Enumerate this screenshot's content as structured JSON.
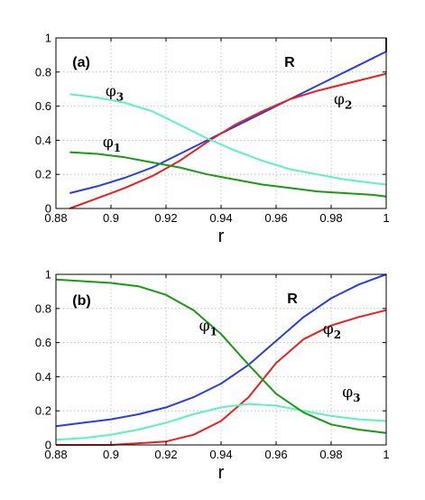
{
  "chart_data": [
    {
      "type": "line",
      "panel_label": "(a)",
      "xlabel": "r",
      "ylabel": "",
      "xlim": [
        0.88,
        1.0
      ],
      "ylim": [
        0,
        1
      ],
      "xticks": [
        "0.88",
        "0.9",
        "0.92",
        "0.94",
        "0.96",
        "0.98",
        "1"
      ],
      "yticks": [
        "0",
        "0.2",
        "0.4",
        "0.6",
        "0.8",
        "1"
      ],
      "grid": true,
      "series": [
        {
          "name": "R",
          "label": "R",
          "color": "#2b3fe0",
          "points": [
            [
              0.885,
              0.09
            ],
            [
              0.895,
              0.13
            ],
            [
              0.905,
              0.18
            ],
            [
              0.915,
              0.24
            ],
            [
              0.925,
              0.32
            ],
            [
              0.935,
              0.4
            ],
            [
              0.945,
              0.48
            ],
            [
              0.955,
              0.56
            ],
            [
              0.965,
              0.64
            ],
            [
              0.975,
              0.72
            ],
            [
              0.985,
              0.8
            ],
            [
              0.995,
              0.88
            ],
            [
              1.0,
              0.92
            ],
            [
              1.0,
              1.0
            ]
          ]
        },
        {
          "name": "φ2",
          "label": "φ",
          "sub": "2",
          "color": "#e82020",
          "points": [
            [
              0.885,
              0.0
            ],
            [
              0.895,
              0.06
            ],
            [
              0.905,
              0.12
            ],
            [
              0.915,
              0.19
            ],
            [
              0.925,
              0.28
            ],
            [
              0.935,
              0.39
            ],
            [
              0.945,
              0.49
            ],
            [
              0.955,
              0.57
            ],
            [
              0.965,
              0.64
            ],
            [
              0.975,
              0.69
            ],
            [
              0.985,
              0.73
            ],
            [
              0.995,
              0.77
            ],
            [
              1.0,
              0.79
            ]
          ]
        },
        {
          "name": "φ3",
          "label": "φ",
          "sub": "3",
          "color": "#5cf2c0",
          "points": [
            [
              0.885,
              0.67
            ],
            [
              0.895,
              0.65
            ],
            [
              0.905,
              0.62
            ],
            [
              0.915,
              0.57
            ],
            [
              0.925,
              0.49
            ],
            [
              0.935,
              0.41
            ],
            [
              0.945,
              0.34
            ],
            [
              0.955,
              0.28
            ],
            [
              0.965,
              0.23
            ],
            [
              0.975,
              0.2
            ],
            [
              0.985,
              0.17
            ],
            [
              0.995,
              0.15
            ],
            [
              1.0,
              0.14
            ]
          ]
        },
        {
          "name": "φ1",
          "label": "φ",
          "sub": "1",
          "color": "#1a9a14",
          "points": [
            [
              0.885,
              0.33
            ],
            [
              0.895,
              0.32
            ],
            [
              0.905,
              0.3
            ],
            [
              0.915,
              0.27
            ],
            [
              0.925,
              0.24
            ],
            [
              0.935,
              0.2
            ],
            [
              0.945,
              0.17
            ],
            [
              0.955,
              0.14
            ],
            [
              0.965,
              0.12
            ],
            [
              0.975,
              0.1
            ],
            [
              0.985,
              0.09
            ],
            [
              0.995,
              0.08
            ],
            [
              1.0,
              0.07
            ]
          ]
        }
      ],
      "labels": [
        {
          "text": "R",
          "x": 0.963,
          "y": 0.83,
          "bold": true
        },
        {
          "text": "φ",
          "sub": "2",
          "x": 0.981,
          "y": 0.61
        },
        {
          "text": "φ",
          "sub": "3",
          "x": 0.898,
          "y": 0.66
        },
        {
          "text": "φ",
          "sub": "1",
          "x": 0.897,
          "y": 0.36
        },
        {
          "text": "(a)",
          "x": 0.886,
          "y": 0.83,
          "panel": true
        }
      ]
    },
    {
      "type": "line",
      "panel_label": "(b)",
      "xlabel": "r",
      "ylabel": "",
      "xlim": [
        0.88,
        1.0
      ],
      "ylim": [
        0,
        1
      ],
      "xticks": [
        "0.88",
        "0.9",
        "0.92",
        "0.94",
        "0.96",
        "0.98",
        "1"
      ],
      "yticks": [
        "0",
        "0.2",
        "0.4",
        "0.6",
        "0.8",
        "1"
      ],
      "grid": true,
      "series": [
        {
          "name": "R",
          "color": "#2b3fe0",
          "points": [
            [
              0.88,
              0.11
            ],
            [
              0.89,
              0.13
            ],
            [
              0.9,
              0.15
            ],
            [
              0.91,
              0.18
            ],
            [
              0.92,
              0.22
            ],
            [
              0.93,
              0.28
            ],
            [
              0.94,
              0.36
            ],
            [
              0.95,
              0.47
            ],
            [
              0.96,
              0.61
            ],
            [
              0.97,
              0.75
            ],
            [
              0.98,
              0.86
            ],
            [
              0.99,
              0.94
            ],
            [
              1.0,
              1.0
            ]
          ]
        },
        {
          "name": "φ2",
          "color": "#e82020",
          "points": [
            [
              0.88,
              0.0
            ],
            [
              0.9,
              0.0
            ],
            [
              0.92,
              0.02
            ],
            [
              0.93,
              0.06
            ],
            [
              0.94,
              0.14
            ],
            [
              0.95,
              0.28
            ],
            [
              0.96,
              0.48
            ],
            [
              0.97,
              0.62
            ],
            [
              0.98,
              0.7
            ],
            [
              0.99,
              0.75
            ],
            [
              1.0,
              0.79
            ]
          ]
        },
        {
          "name": "φ3",
          "color": "#5cf2c0",
          "points": [
            [
              0.88,
              0.03
            ],
            [
              0.89,
              0.04
            ],
            [
              0.9,
              0.06
            ],
            [
              0.91,
              0.09
            ],
            [
              0.92,
              0.13
            ],
            [
              0.93,
              0.18
            ],
            [
              0.94,
              0.22
            ],
            [
              0.95,
              0.24
            ],
            [
              0.96,
              0.23
            ],
            [
              0.97,
              0.2
            ],
            [
              0.98,
              0.17
            ],
            [
              0.99,
              0.15
            ],
            [
              1.0,
              0.14
            ]
          ]
        },
        {
          "name": "φ1",
          "color": "#1a9a14",
          "points": [
            [
              0.88,
              0.97
            ],
            [
              0.89,
              0.96
            ],
            [
              0.9,
              0.95
            ],
            [
              0.91,
              0.93
            ],
            [
              0.92,
              0.88
            ],
            [
              0.93,
              0.79
            ],
            [
              0.94,
              0.65
            ],
            [
              0.95,
              0.47
            ],
            [
              0.96,
              0.3
            ],
            [
              0.97,
              0.19
            ],
            [
              0.98,
              0.12
            ],
            [
              0.99,
              0.09
            ],
            [
              1.0,
              0.07
            ]
          ]
        }
      ],
      "labels": [
        {
          "text": "R",
          "x": 0.964,
          "y": 0.83,
          "bold": true
        },
        {
          "text": "φ",
          "sub": "2",
          "x": 0.977,
          "y": 0.65
        },
        {
          "text": "φ",
          "sub": "1",
          "x": 0.932,
          "y": 0.67
        },
        {
          "text": "φ",
          "sub": "3",
          "x": 0.984,
          "y": 0.28
        },
        {
          "text": "(b)",
          "x": 0.886,
          "y": 0.82,
          "panel": true
        }
      ]
    }
  ]
}
